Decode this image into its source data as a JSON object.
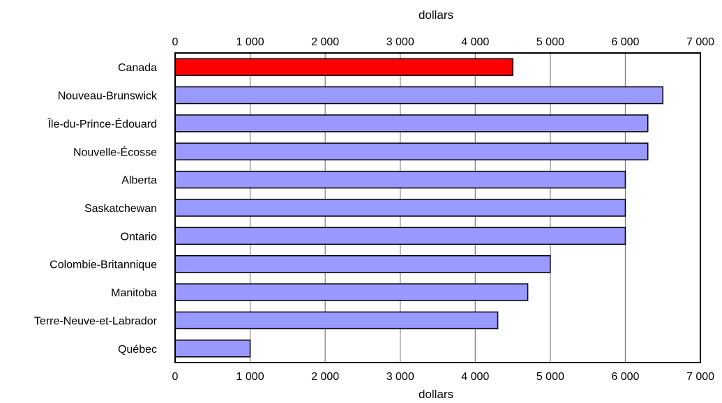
{
  "chart_data": {
    "type": "bar",
    "orientation": "horizontal",
    "categories": [
      "Canada",
      "Nouveau-Brunswick",
      "Île-du-Prince-Édouard",
      "Nouvelle-Écosse",
      "Alberta",
      "Saskatchewan",
      "Ontario",
      "Colombie-Britannique",
      "Manitoba",
      "Terre-Neuve-et-Labrador",
      "Québec"
    ],
    "values": [
      4500,
      6500,
      6300,
      6300,
      6000,
      6000,
      6000,
      5000,
      4700,
      4300,
      1000
    ],
    "highlight": {
      "category": "Canada",
      "color": "#ff0000"
    },
    "bar_color": "#9999ff",
    "xlabel_top": "dollars",
    "xlabel_bottom": "dollars",
    "xlim": [
      0,
      7000
    ],
    "xticks": [
      0,
      1000,
      2000,
      3000,
      4000,
      5000,
      6000,
      7000
    ],
    "xtick_labels": [
      "0",
      "1 000",
      "2 000",
      "3 000",
      "4 000",
      "5 000",
      "6 000",
      "7 000"
    ],
    "grid": "vertical"
  }
}
